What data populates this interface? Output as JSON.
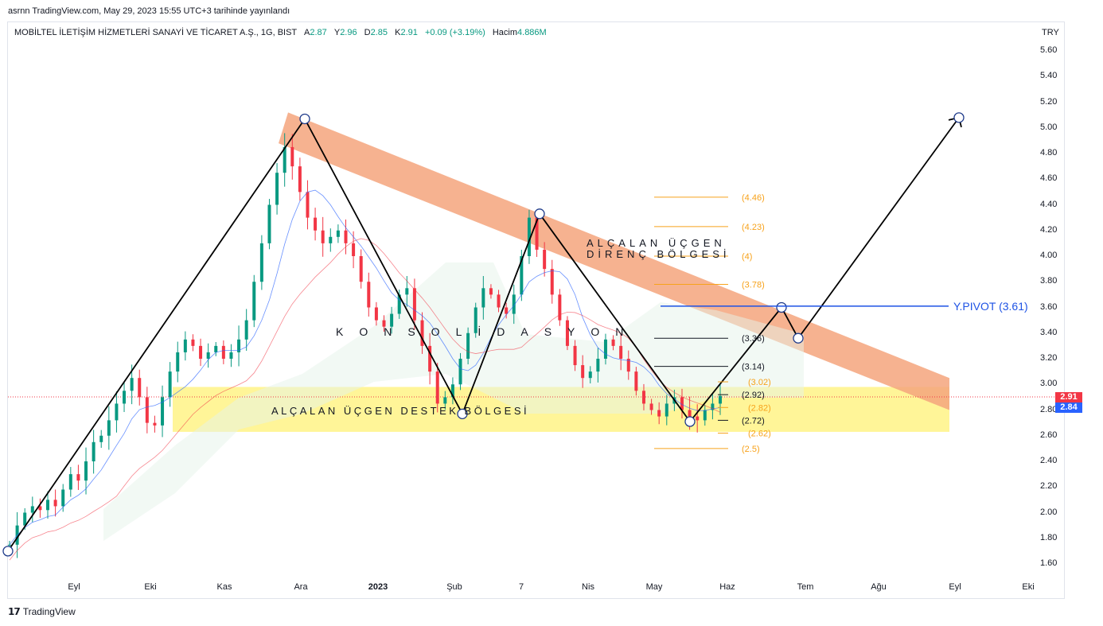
{
  "header": {
    "published": "asrnn TradingView.com, May 29, 2023 15:55 UTC+3 tarihinde yayınlandı"
  },
  "legend": {
    "symbol": "MOBİLTEL İLETİŞİM HİZMETLERİ SANAYİ VE TİCARET A.Ş., 1G, BIST",
    "open_label": "A",
    "open": "2.87",
    "high_label": "Y",
    "high": "2.96",
    "low_label": "D",
    "low": "2.85",
    "close_label": "K",
    "close": "2.91",
    "change": "+0.09 (+3.19%)",
    "volume_label": "Hacim",
    "volume": "4.886M"
  },
  "axis": {
    "currency": "TRY",
    "y_ticks": [
      "5.60",
      "5.40",
      "5.20",
      "5.00",
      "4.80",
      "4.60",
      "4.40",
      "4.20",
      "4.00",
      "3.80",
      "3.60",
      "3.40",
      "3.20",
      "3.00",
      "2.80",
      "2.60",
      "2.40",
      "2.20",
      "2.00",
      "1.80",
      "1.60"
    ],
    "x_ticks": [
      "Eyl",
      "Eki",
      "Kas",
      "Ara",
      "2023",
      "Şub",
      "7",
      "Nis",
      "May",
      "Haz",
      "Tem",
      "Ağu",
      "Eyl",
      "Eki"
    ],
    "price_badges": [
      "2.91",
      "2.84"
    ]
  },
  "annotations": {
    "resistance_zone": "ALÇALAN ÜÇGEN DİRENÇ BÖLGESİ",
    "resistance_line1": "ALÇALAN ÜÇGEN",
    "resistance_line2": "DİRENÇ BÖLGESİ",
    "support_zone": "ALÇALAN ÜÇGEN DESTEK BÖLGESİ",
    "consolidation": "KONSOLİDASYON",
    "pivot": "Y.PIVOT (3.61)"
  },
  "fib_levels": [
    {
      "value": 4.46,
      "label": "(4.46)",
      "color": "#f7a21b"
    },
    {
      "value": 4.23,
      "label": "(4.23)",
      "color": "#f7a21b"
    },
    {
      "value": 4.0,
      "label": "(4)",
      "color": "#f7a21b"
    },
    {
      "value": 3.78,
      "label": "(3.78)",
      "color": "#f7a21b"
    },
    {
      "value": 3.36,
      "label": "(3.36)",
      "color": "#131722"
    },
    {
      "value": 3.14,
      "label": "(3.14)",
      "color": "#131722"
    },
    {
      "value": 3.02,
      "label": "(3.02)",
      "color": "#f7a21b"
    },
    {
      "value": 2.92,
      "label": "(2.92)",
      "color": "#131722"
    },
    {
      "value": 2.82,
      "label": "(2.82)",
      "color": "#f7a21b"
    },
    {
      "value": 2.72,
      "label": "(2.72)",
      "color": "#131722"
    },
    {
      "value": 2.62,
      "label": "(2.62)",
      "color": "#f7a21b"
    },
    {
      "value": 2.5,
      "label": "(2.5)",
      "color": "#f7a21b"
    }
  ],
  "chart_data": {
    "type": "candlestick",
    "title": "MOBİLTEL İLETİŞİM HİZMETLERİ SANAYİ VE TİCARET A.Ş., 1G, BIST",
    "ylim": [
      1.55,
      5.68
    ],
    "yscale": "linear",
    "colors": {
      "up": "#089981",
      "down": "#f23645",
      "resistance_zone": "#f4a57c",
      "support_zone": "#fff176",
      "pivot": "#1e53e5",
      "pattern": "#000000"
    },
    "support_zone": [
      2.63,
      2.98
    ],
    "resistance_channel": {
      "start": [
        "Ara",
        5.0
      ],
      "end": [
        "Eyl",
        2.85
      ]
    },
    "pivot_level": 3.61,
    "pattern_points": [
      {
        "date": "Ağu",
        "price": 1.7
      },
      {
        "date": "Ara",
        "price": 5.07
      },
      {
        "date": "Şub",
        "price": 2.77
      },
      {
        "date": "Mar",
        "price": 4.33
      },
      {
        "date": "May",
        "price": 2.71
      },
      {
        "date": "Haz",
        "price": 3.6
      },
      {
        "date": "Tem",
        "price": 3.36
      },
      {
        "date": "Eyl",
        "price": 5.08
      }
    ],
    "price_path": [
      [
        1.75,
        1.9,
        2.0,
        2.05,
        2.02,
        2.1,
        2.05,
        2.18,
        2.3,
        2.25,
        2.4,
        2.55,
        2.6,
        2.72,
        2.85,
        2.95,
        3.05,
        2.9,
        2.7,
        2.68
      ],
      [
        2.9,
        3.1,
        3.25,
        3.35,
        3.3,
        3.2,
        3.25,
        3.3,
        3.2,
        3.25,
        3.35,
        3.5,
        3.8,
        4.1,
        4.4,
        4.65,
        4.85,
        4.7,
        4.5,
        4.3
      ],
      [
        4.2,
        4.1,
        4.15,
        4.2,
        4.1,
        4.0,
        3.8,
        3.6,
        3.5,
        3.45,
        3.55,
        3.7,
        3.75,
        3.5,
        3.3,
        3.1,
        2.85,
        2.9,
        3.0,
        3.2
      ],
      [
        3.4,
        3.6,
        3.75,
        3.7,
        3.6,
        3.55,
        3.7,
        4.0,
        4.3,
        4.05,
        3.9,
        3.7,
        3.5,
        3.3,
        3.15,
        3.05,
        3.1,
        3.2,
        3.35,
        3.3
      ],
      [
        3.2,
        3.1,
        2.95,
        2.85,
        2.8,
        2.75,
        2.85,
        2.9,
        2.8,
        2.75,
        2.72,
        2.8,
        2.85,
        2.91
      ]
    ]
  }
}
